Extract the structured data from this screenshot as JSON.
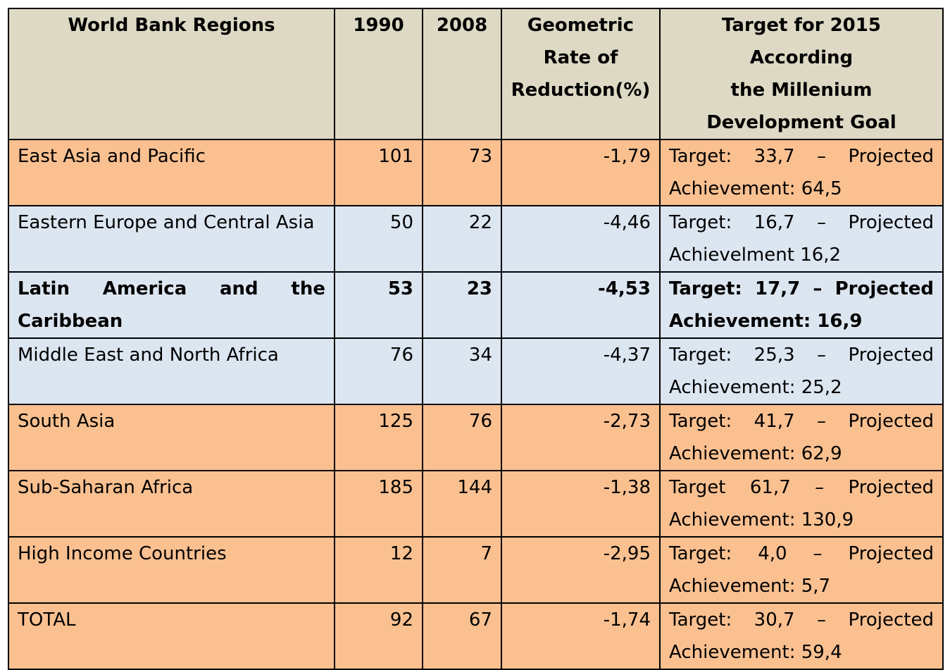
{
  "table": {
    "headers": {
      "region": "World Bank Regions",
      "y1990": "1990",
      "y2008": "2008",
      "rate_lines": [
        "Geometric",
        "Rate of",
        "Reduction(%)"
      ],
      "target_lines": [
        "Target for 2015 According",
        "the Millenium",
        "Development Goal"
      ]
    },
    "colors": {
      "header_bg": "#ddd9c4",
      "orange_row": "#fac090",
      "blue_row": "#dce6f1"
    },
    "rows": [
      {
        "region": "East Asia and Pacific",
        "y1990": "101",
        "y2008": "73",
        "rate": "-1,79",
        "target": "Target: 33,7 – Projected Achievement: 64,5",
        "color": "orange",
        "bold": false
      },
      {
        "region": "Eastern Europe and Central Asia",
        "y1990": "50",
        "y2008": "22",
        "rate": "-4,46",
        "target": "Target: 16,7 – Projected Achievelment 16,2",
        "color": "blue",
        "bold": false
      },
      {
        "region": "Latin America and the Caribbean",
        "y1990": "53",
        "y2008": "23",
        "rate": "-4,53",
        "target": "Target: 17,7 – Projected Achievement: 16,9",
        "color": "blue",
        "bold": true
      },
      {
        "region": "Middle East and North Africa",
        "y1990": "76",
        "y2008": "34",
        "rate": "-4,37",
        "target": "Target: 25,3 – Projected Achievement: 25,2",
        "color": "blue",
        "bold": false
      },
      {
        "region": "South Asia",
        "y1990": "125",
        "y2008": "76",
        "rate": "-2,73",
        "target": "Target: 41,7 – Projected Achievement: 62,9",
        "color": "orange",
        "bold": false
      },
      {
        "region": "Sub-Saharan Africa",
        "y1990": "185",
        "y2008": "144",
        "rate": "-1,38",
        "target": "Target 61,7 – Projected Achievement: 130,9",
        "color": "orange",
        "bold": false
      },
      {
        "region": "High Income Countries",
        "y1990": "12",
        "y2008": "7",
        "rate": "-2,95",
        "target": "Target: 4,0 – Projected Achievement: 5,7",
        "color": "orange",
        "bold": false
      },
      {
        "region": "TOTAL",
        "y1990": "92",
        "y2008": "67",
        "rate": "-1,74",
        "target": "Target: 30,7 – Projected Achievement: 59,4",
        "color": "orange",
        "bold": false
      }
    ]
  }
}
